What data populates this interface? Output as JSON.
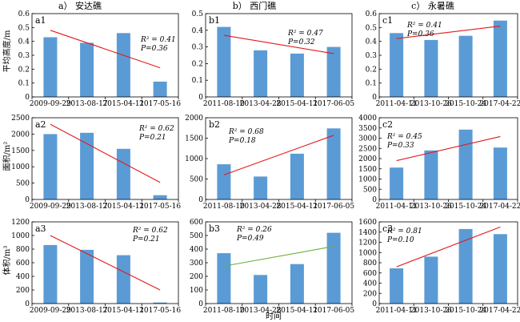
{
  "figure": {
    "headers": [
      "a） 安达礁",
      "b） 西门礁",
      "c） 永暑礁"
    ],
    "row_labels": [
      "平均高度/m",
      "面积/m²",
      "体积/m³"
    ],
    "xlabel": "时间",
    "colors": {
      "bar": "#5B9BD5",
      "trend": "#E31A1C",
      "trend_alt": "#6AAF3D",
      "axis": "#000000"
    }
  },
  "chart_data": [
    {
      "id": "a1",
      "type": "bar",
      "categories": [
        "2009-09-29",
        "2013-08-17",
        "2015-04-11",
        "2017-05-16"
      ],
      "values": [
        0.43,
        0.39,
        0.46,
        0.11
      ],
      "ylim": [
        0,
        0.6
      ],
      "yticks": [
        0,
        0.1,
        0.2,
        0.3,
        0.4,
        0.5,
        0.6
      ],
      "trend": [
        0.48,
        0.21
      ],
      "trend_color": "#E31A1C",
      "r2": "R² = 0.41",
      "p": "P=0.36"
    },
    {
      "id": "b1",
      "type": "bar",
      "categories": [
        "2011-08-10",
        "2013-04-28",
        "2015-04-11",
        "2017-06-05"
      ],
      "values": [
        0.42,
        0.28,
        0.26,
        0.3
      ],
      "ylim": [
        0,
        0.5
      ],
      "yticks": [
        0,
        0.1,
        0.2,
        0.3,
        0.4,
        0.5
      ],
      "trend": [
        0.37,
        0.26
      ],
      "trend_color": "#E31A1C",
      "r2": "R² = 0.47",
      "p": "P=0.32"
    },
    {
      "id": "c1",
      "type": "bar",
      "categories": [
        "2011-04-11",
        "2013-10-26",
        "2015-10-24",
        "2017-04-22"
      ],
      "values": [
        0.46,
        0.41,
        0.44,
        0.55
      ],
      "ylim": [
        0,
        0.6
      ],
      "yticks": [
        0,
        0.1,
        0.2,
        0.3,
        0.4,
        0.5,
        0.6
      ],
      "trend": [
        0.42,
        0.51
      ],
      "trend_color": "#E31A1C",
      "r2": "R² = 0.41",
      "p": "P=0.36"
    },
    {
      "id": "a2",
      "type": "bar",
      "categories": [
        "2009-09-29",
        "2013-08-17",
        "2015-04-11",
        "2017-05-16"
      ],
      "values": [
        2000,
        2040,
        1550,
        130
      ],
      "ylim": [
        0,
        2500
      ],
      "yticks": [
        0,
        500,
        1000,
        1500,
        2000,
        2500
      ],
      "trend": [
        2300,
        520
      ],
      "trend_color": "#E31A1C",
      "r2": "R² = 0.62",
      "p": "P=0.21"
    },
    {
      "id": "b2",
      "type": "bar",
      "categories": [
        "2011-08-10",
        "2013-04-28",
        "2015-04-11",
        "2017-06-05"
      ],
      "values": [
        860,
        560,
        1120,
        1740
      ],
      "ylim": [
        0,
        2000
      ],
      "yticks": [
        0,
        500,
        1000,
        1500,
        2000
      ],
      "trend": [
        600,
        1570
      ],
      "trend_color": "#E31A1C",
      "r2": "R² = 0.68",
      "p": "P=0.18"
    },
    {
      "id": "c2",
      "type": "bar",
      "categories": [
        "2011-04-11",
        "2013-10-26",
        "2015-10-24",
        "2017-04-22"
      ],
      "values": [
        1560,
        2400,
        3420,
        2540
      ],
      "ylim": [
        0,
        4000
      ],
      "yticks": [
        0,
        500,
        1000,
        1500,
        2000,
        2500,
        3000,
        3500,
        4000
      ],
      "trend": [
        1900,
        3080
      ],
      "trend_color": "#E31A1C",
      "r2": "R² = 0.45",
      "p": "P=0.33"
    },
    {
      "id": "a3",
      "type": "bar",
      "categories": [
        "2009-09-29",
        "2013-08-17",
        "2015-04-11",
        "2017-05-16"
      ],
      "values": [
        860,
        790,
        710,
        15
      ],
      "ylim": [
        0,
        1200
      ],
      "yticks": [
        0,
        200,
        400,
        600,
        800,
        1000,
        1200
      ],
      "trend": [
        1000,
        200
      ],
      "trend_color": "#E31A1C",
      "r2": "R² = 0.62",
      "p": "P=0.21"
    },
    {
      "id": "b3",
      "type": "bar",
      "categories": [
        "2011-08-10",
        "2013-04-28",
        "2015-04-11",
        "2017-06-05"
      ],
      "values": [
        370,
        210,
        290,
        520
      ],
      "ylim": [
        0,
        600
      ],
      "yticks": [
        0,
        100,
        200,
        300,
        400,
        500,
        600
      ],
      "trend": [
        275,
        420
      ],
      "trend_color": "#6AAF3D",
      "r2": "R² = 0.26",
      "p": "P=0.49"
    },
    {
      "id": "c3",
      "type": "bar",
      "categories": [
        "2011-04-11",
        "2013-10-26",
        "2015-10-24",
        "2017-04-22"
      ],
      "values": [
        690,
        920,
        1460,
        1360
      ],
      "ylim": [
        0,
        1600
      ],
      "yticks": [
        0,
        200,
        400,
        600,
        800,
        1000,
        1200,
        1400,
        1600
      ],
      "trend": [
        720,
        1500
      ],
      "trend_color": "#E31A1C",
      "r2": "R² = 0.81",
      "p": "P=0.10"
    }
  ]
}
